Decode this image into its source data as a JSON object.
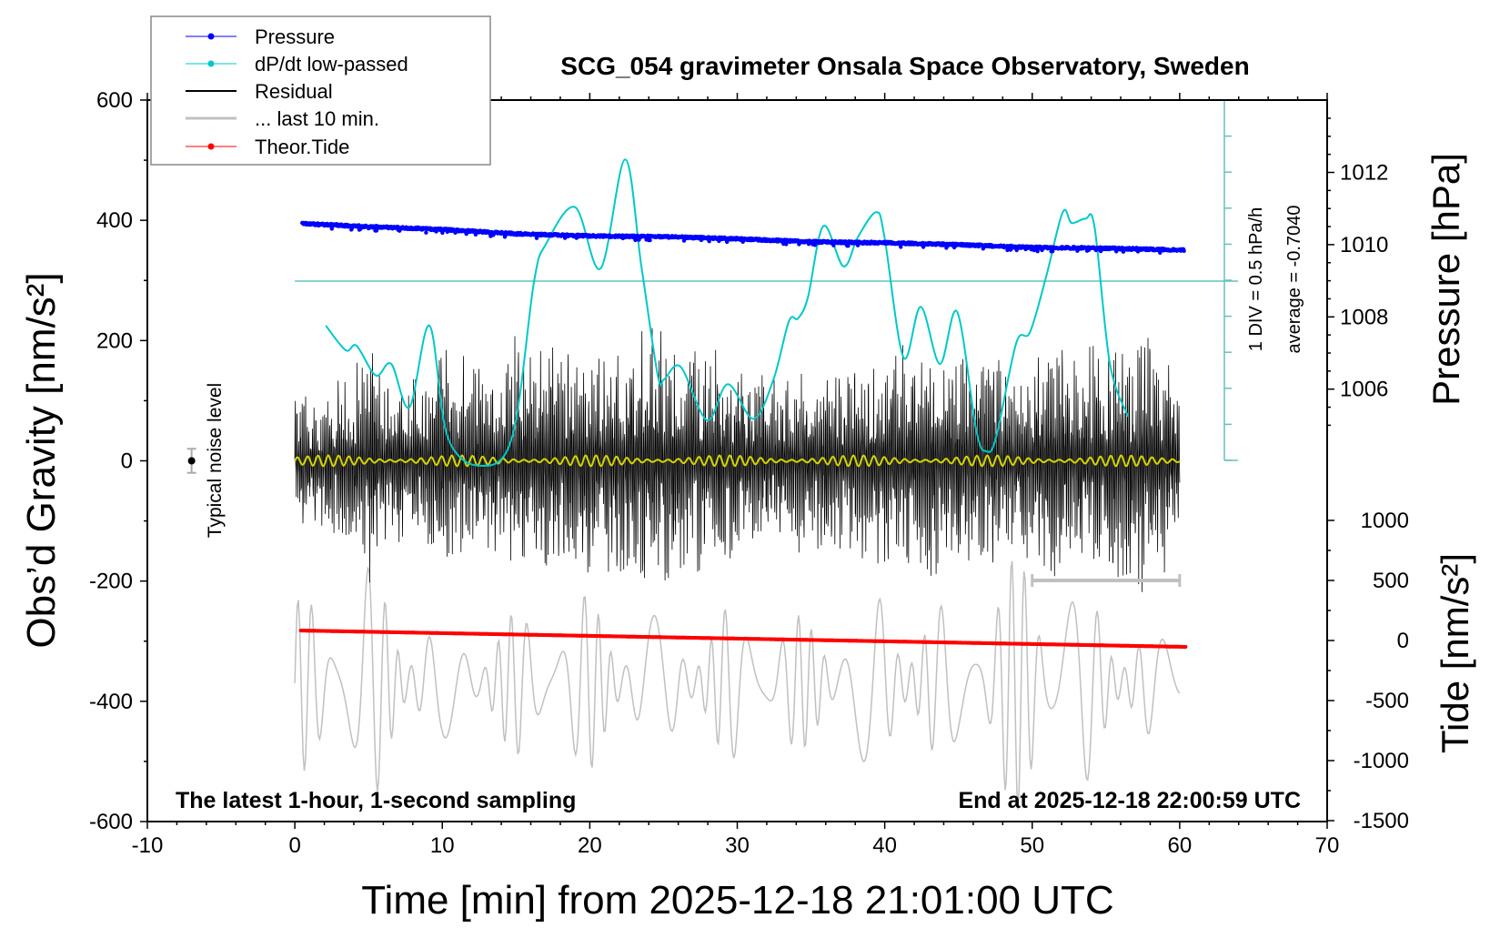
{
  "chart_data": {
    "type": "line",
    "title": "SCG_054 gravimeter Onsala Space Observatory, Sweden",
    "xlabel": "Time [min] from 2025-12-18 21:01:00 UTC",
    "ylabel": "Obs’d Gravity [nm/s²]",
    "y2label_pressure": "Pressure [hPa]",
    "y2label_tide": "Tide [nm/s²]",
    "xlim": [
      -10,
      70
    ],
    "ylim": [
      -600,
      600
    ],
    "pressure_ylim_ticks": [
      1012,
      1010,
      1008,
      1006
    ],
    "tide_ticks": [
      1000,
      500,
      0,
      -500,
      -1000,
      -1500
    ],
    "x_ticks": [
      -10,
      0,
      10,
      20,
      30,
      40,
      50,
      60,
      70
    ],
    "y_ticks": [
      600,
      400,
      200,
      0,
      -200,
      -400,
      -600
    ],
    "grid": false,
    "legend_position": "top-left",
    "legend": [
      {
        "label": "Pressure",
        "color": "#0000ff",
        "marker": "dot"
      },
      {
        "label": "dP/dt low-passed",
        "color": "#00c8c8",
        "marker": "dot"
      },
      {
        "label": "Residual",
        "color": "#000000",
        "marker": "line"
      },
      {
        "label": "... last 10 min.",
        "color": "#c0c0c0",
        "marker": "line"
      },
      {
        "label": "Theor.Tide",
        "color": "#ff0000",
        "marker": "dot"
      }
    ],
    "annotations": {
      "left_bottom": "The latest 1-hour, 1-second sampling",
      "right_bottom": "End at 2025-12-18 22:00:59 UTC",
      "dpdt_scale": "1 DIV = 0.5 hPa/h",
      "dpdt_average": "average = -0.7040",
      "noise_label": "Typical noise level"
    },
    "pressure_hpa": {
      "t": [
        0.5,
        5,
        10,
        15,
        20,
        25,
        30,
        35,
        40,
        45,
        50,
        55,
        60.3
      ],
      "values": [
        1010.58,
        1010.5,
        1010.42,
        1010.3,
        1010.24,
        1010.22,
        1010.16,
        1010.08,
        1010.05,
        1010.0,
        1009.92,
        1009.9,
        1009.85
      ]
    },
    "dpdt_hpa_per_h": {
      "t": [
        2.1,
        3.45,
        4.19,
        5.49,
        6.54,
        7.77,
        9.13,
        10.36,
        12.6,
        14.74,
        16.22,
        17.03,
        19.0,
        20.73,
        22.39,
        23.5,
        24.61,
        25.05,
        26.16,
        27.95,
        29.36,
        31.09,
        32.45,
        33.5,
        34.12,
        34.79,
        35.84,
        37.2,
        38.19,
        39.42,
        39.98,
        41.27,
        42.44,
        43.74,
        44.91,
        46.21,
        46.9,
        47.56,
        48.92,
        49.85,
        50.96,
        52.07,
        52.68,
        53.61,
        54.23,
        55.27,
        56.51
      ],
      "values": [
        -1.32,
        -1.66,
        -1.6,
        -2.01,
        -1.85,
        -2.45,
        -1.32,
        -2.86,
        -3.26,
        -2.86,
        -0.71,
        -0.19,
        0.32,
        -0.53,
        0.98,
        -0.5,
        -2.01,
        -2.06,
        -1.89,
        -2.63,
        -2.13,
        -2.61,
        -2.07,
        -1.26,
        -1.22,
        -0.93,
        0.06,
        -0.5,
        -0.09,
        0.25,
        -0.09,
        -1.76,
        -1.06,
        -1.85,
        -1.13,
        -2.77,
        -3.06,
        -2.86,
        -1.56,
        -1.41,
        -0.63,
        0.25,
        0.1,
        0.16,
        0.04,
        -1.85,
        -2.58
      ],
      "average": -0.704
    },
    "theor_tide_nm_s2": {
      "t": [
        0.4,
        60.4
      ],
      "values": [
        83,
        -53
      ]
    },
    "residual_envelope_nm_s2": {
      "t": [
        0,
        2,
        4,
        5,
        6,
        9,
        10,
        14,
        15,
        16,
        21,
        22,
        25,
        30,
        33,
        38,
        42,
        44,
        50,
        51,
        54,
        58,
        60
      ],
      "values": [
        110,
        120,
        160,
        230,
        150,
        160,
        200,
        150,
        230,
        200,
        190,
        230,
        220,
        180,
        150,
        180,
        200,
        200,
        170,
        210,
        190,
        230,
        150
      ]
    },
    "last10_envelope_nm_s2": {
      "center": -370,
      "t": [
        0,
        5,
        10,
        15,
        20,
        25,
        30,
        35,
        40,
        45,
        48,
        50,
        55,
        60
      ],
      "values": [
        140,
        200,
        90,
        120,
        150,
        110,
        130,
        110,
        160,
        120,
        200,
        230,
        140,
        60
      ]
    },
    "noise_level": {
      "t": -7,
      "value": 0,
      "error": 20
    },
    "last10_bar_t": [
      50,
      60
    ],
    "colors": {
      "pressure": "#0000ff",
      "dpdt": "#00c8c8",
      "dpdt_axis": "#66c0c0",
      "residual": "#000000",
      "last10": "#c0c0c0",
      "tide": "#ff0000",
      "smoothed": "#d4d400"
    }
  }
}
